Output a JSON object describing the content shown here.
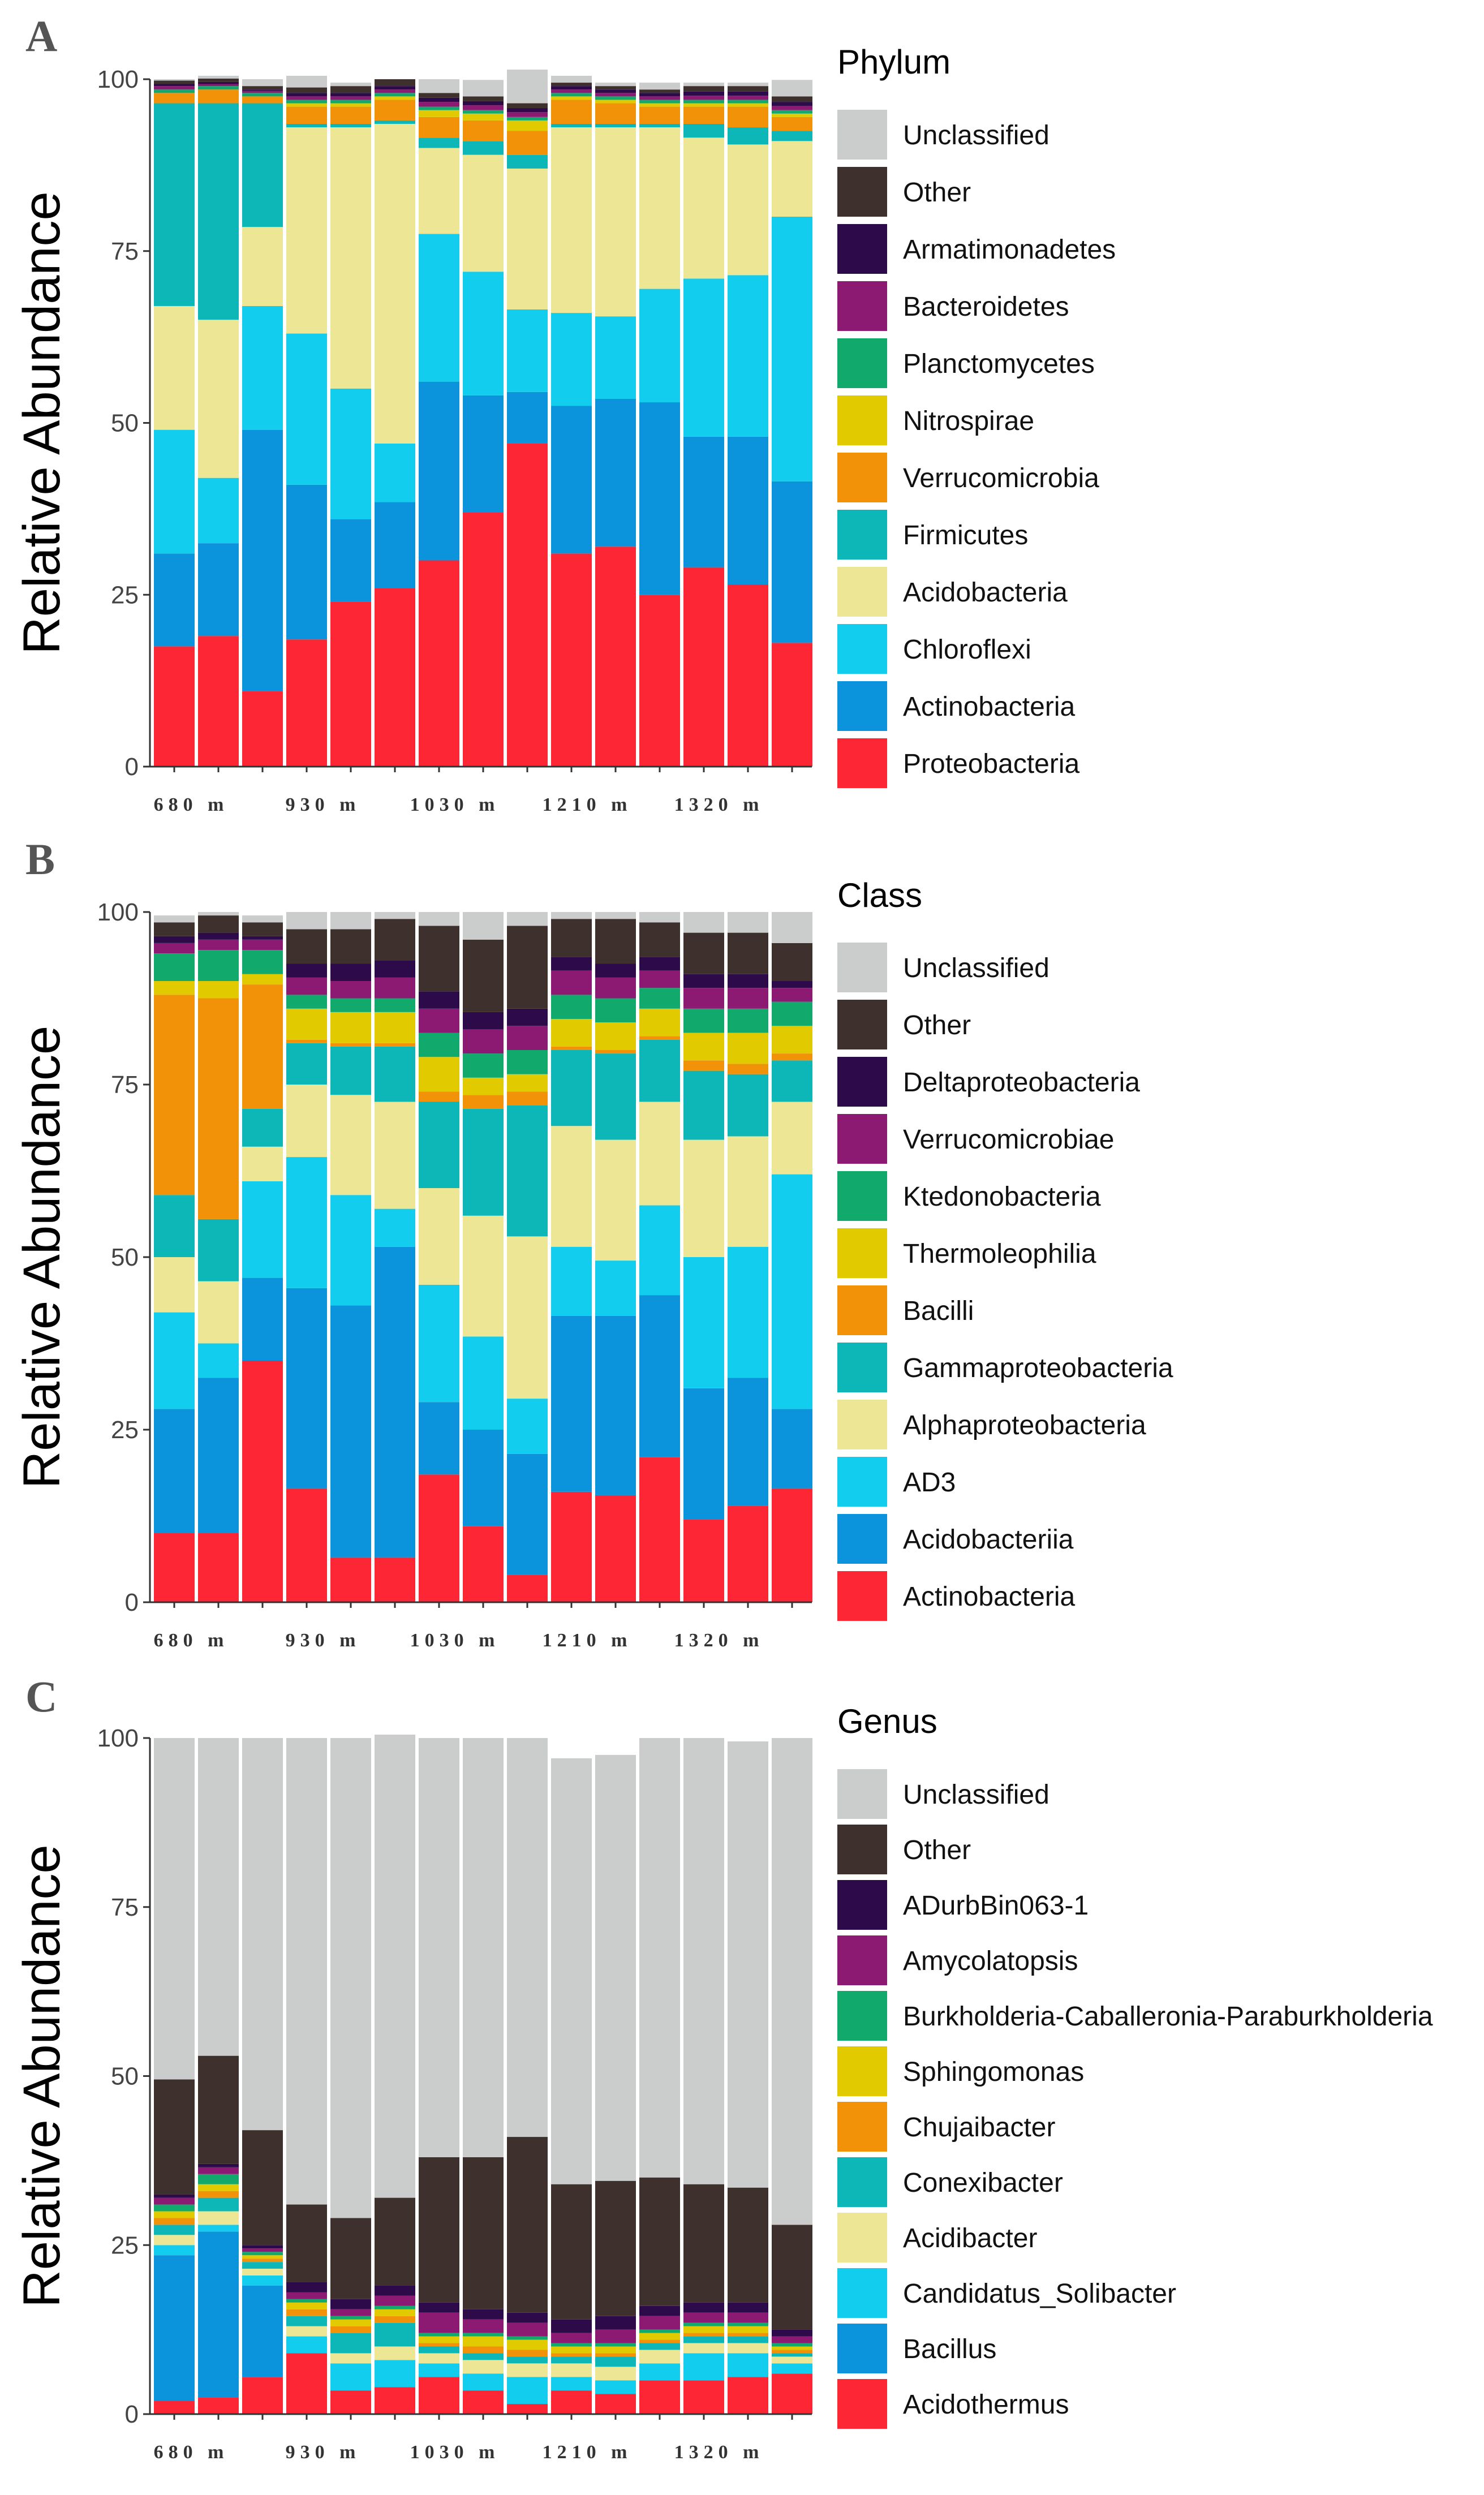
{
  "figure": {
    "panels": [
      "A",
      "B",
      "C"
    ],
    "y_axis_label": "Relative Abundance"
  },
  "chart_data": [
    {
      "panel": "A",
      "type": "bar",
      "stacked": true,
      "ylabel": "Relative Abundance",
      "ylim": [
        0,
        100
      ],
      "yticks": [
        0,
        25,
        50,
        75,
        100
      ],
      "sites": [
        "680 m",
        "930 m",
        "1030 m",
        "1210 m",
        "1320 m"
      ],
      "bars_per_site": 3,
      "legend_title": "Phylum",
      "legend": [
        "Unclassified",
        "Other",
        "Armatimonadetes",
        "Bacteroidetes",
        "Planctomycetes",
        "Nitrospirae",
        "Verrucomicrobia",
        "Firmicutes",
        "Acidobacteria",
        "Chloroflexi",
        "Actinobacteria",
        "Proteobacteria"
      ],
      "colors": [
        "#cbcccc",
        "#3d302d",
        "#2d0a4a",
        "#8d1a72",
        "#12a96d",
        "#e2ca00",
        "#f29209",
        "#0eb7b7",
        "#ede795",
        "#12cdee",
        "#0b94dc",
        "#fc2634"
      ],
      "series_bottom_to_top": [
        "Proteobacteria",
        "Actinobacteria",
        "Chloroflexi",
        "Acidobacteria",
        "Firmicutes",
        "Verrucomicrobia",
        "Nitrospirae",
        "Planctomycetes",
        "Bacteroidetes",
        "Armatimonadetes",
        "Other",
        "Unclassified"
      ],
      "series": [
        {
          "name": "Proteobacteria",
          "values": [
            17.5,
            19,
            11,
            18.5,
            24,
            26,
            30,
            37,
            47,
            31,
            32,
            25,
            29,
            26.5,
            18
          ]
        },
        {
          "name": "Actinobacteria",
          "values": [
            13.5,
            13.5,
            38,
            22.5,
            12,
            12.5,
            26,
            17,
            7.5,
            21.5,
            21.5,
            28,
            19,
            21.5,
            23.5
          ]
        },
        {
          "name": "Chloroflexi",
          "values": [
            18,
            9.5,
            18,
            22,
            19,
            8.5,
            21.5,
            18,
            12,
            13.5,
            12,
            16.5,
            23,
            23.5,
            38.5
          ]
        },
        {
          "name": "Acidobacteria",
          "values": [
            18,
            23,
            11.5,
            30,
            38,
            46.5,
            12.5,
            17,
            20.5,
            27,
            27.5,
            23.5,
            20.5,
            19,
            11
          ]
        },
        {
          "name": "Firmicutes",
          "values": [
            29.5,
            31.5,
            18,
            0.5,
            0.5,
            0.5,
            1.5,
            2,
            2,
            0.5,
            0.5,
            0.5,
            2,
            2.5,
            1.5
          ]
        },
        {
          "name": "Verrucomicrobia",
          "values": [
            1.5,
            2,
            1,
            2.5,
            2.5,
            3,
            3,
            3,
            3.5,
            3.5,
            3,
            2.5,
            2.5,
            3,
            2
          ]
        },
        {
          "name": "Nitrospirae",
          "values": [
            0,
            0,
            0,
            0.5,
            0.5,
            0.5,
            1,
            1,
            1.5,
            0.5,
            0.5,
            0.5,
            0.5,
            0.5,
            0.5
          ]
        },
        {
          "name": "Planctomycetes",
          "values": [
            0.5,
            0.5,
            0.5,
            0.5,
            0.5,
            0.5,
            0.5,
            0.5,
            0.5,
            0.5,
            0.5,
            0.5,
            0.5,
            0.5,
            0.5
          ]
        },
        {
          "name": "Bacteroidetes",
          "values": [
            0.5,
            0.3,
            0.3,
            0.5,
            0.5,
            0.5,
            0.7,
            0.7,
            0.7,
            0.5,
            0.5,
            0.5,
            0.6,
            0.6,
            0.6
          ]
        },
        {
          "name": "Armatimonadetes",
          "values": [
            0.3,
            0.3,
            0.2,
            0.5,
            0.5,
            0.5,
            0.6,
            0.6,
            0.6,
            0.5,
            0.5,
            0.5,
            0.6,
            0.6,
            0.6
          ]
        },
        {
          "name": "Other",
          "values": [
            0.5,
            0.5,
            0.5,
            0.8,
            1,
            1,
            0.7,
            0.7,
            0.7,
            0.5,
            0.5,
            0.5,
            0.8,
            0.8,
            0.8
          ]
        },
        {
          "name": "Unclassified",
          "values": [
            0.2,
            0.4,
            1,
            1.7,
            0.5,
            0,
            2,
            2.4,
            4.9,
            1,
            0.5,
            1,
            0.5,
            0.5,
            2.4
          ]
        }
      ]
    },
    {
      "panel": "B",
      "type": "bar",
      "stacked": true,
      "ylabel": "Relative Abundance",
      "ylim": [
        0,
        100
      ],
      "yticks": [
        0,
        25,
        50,
        75,
        100
      ],
      "sites": [
        "680 m",
        "930 m",
        "1030 m",
        "1210 m",
        "1320 m"
      ],
      "bars_per_site": 3,
      "legend_title": "Class",
      "legend": [
        "Unclassified",
        "Other",
        "Deltaproteobacteria",
        "Verrucomicrobiae",
        "Ktedonobacteria",
        "Thermoleophilia",
        "Bacilli",
        "Gammaproteobacteria",
        "Alphaproteobacteria",
        "AD3",
        "Acidobacteriia",
        "Actinobacteria"
      ],
      "colors": [
        "#cbcccc",
        "#3d302d",
        "#2d0a4a",
        "#8d1a72",
        "#12a96d",
        "#e2ca00",
        "#f29209",
        "#0eb7b7",
        "#ede795",
        "#12cdee",
        "#0b94dc",
        "#fc2634"
      ],
      "series_bottom_to_top": [
        "Actinobacteria",
        "Acidobacteriia",
        "AD3",
        "Alphaproteobacteria",
        "Gammaproteobacteria",
        "Bacilli",
        "Thermoleophilia",
        "Ktedonobacteria",
        "Verrucomicrobiae",
        "Deltaproteobacteria",
        "Other",
        "Unclassified"
      ],
      "series": [
        {
          "name": "Actinobacteria",
          "values": [
            10,
            10,
            35,
            16.5,
            6.5,
            6.5,
            18.5,
            11,
            4,
            16,
            15.5,
            21,
            12,
            14,
            16.5
          ]
        },
        {
          "name": "Acidobacteriia",
          "values": [
            18,
            22.5,
            12,
            29,
            36.5,
            45,
            10.5,
            14,
            17.5,
            25.5,
            26,
            23.5,
            19,
            18.5,
            11.5
          ]
        },
        {
          "name": "AD3",
          "values": [
            14,
            5,
            14,
            19,
            16,
            5.5,
            17,
            13.5,
            8,
            10,
            8,
            13,
            19,
            19,
            34
          ]
        },
        {
          "name": "Alphaproteobacteria",
          "values": [
            8,
            9,
            5,
            10.5,
            14.5,
            15.5,
            14,
            17.5,
            23.5,
            17.5,
            17.5,
            15,
            17,
            16,
            10.5
          ]
        },
        {
          "name": "Gammaproteobacteria",
          "values": [
            9,
            9,
            5.5,
            6,
            7,
            8,
            12.5,
            15.5,
            19,
            11,
            12.5,
            9,
            10,
            9,
            6
          ]
        },
        {
          "name": "Bacilli",
          "values": [
            29,
            32,
            18,
            0.5,
            0.5,
            0.5,
            1.5,
            2,
            2,
            0.5,
            0.5,
            0.5,
            1.5,
            1.5,
            1
          ]
        },
        {
          "name": "Thermoleophilia",
          "values": [
            2,
            2.5,
            1.5,
            4.5,
            4.5,
            4.5,
            5,
            2.5,
            2.5,
            4,
            4,
            4,
            4,
            4.5,
            4
          ]
        },
        {
          "name": "Ktedonobacteria",
          "values": [
            4,
            4.5,
            3.5,
            2,
            2,
            2,
            3.5,
            3.5,
            3.5,
            3.5,
            3.5,
            3,
            3.5,
            3.5,
            3.5
          ]
        },
        {
          "name": "Verrucomicrobiae",
          "values": [
            1.5,
            1.5,
            1.5,
            2.5,
            2.5,
            3,
            3.5,
            3.5,
            3.5,
            3.5,
            3,
            2.5,
            3,
            3,
            2
          ]
        },
        {
          "name": "Deltaproteobacteria",
          "values": [
            1,
            1,
            0.5,
            2,
            2.5,
            2.5,
            2.5,
            2.5,
            2.5,
            2,
            2,
            2,
            2,
            2,
            1
          ]
        },
        {
          "name": "Other",
          "values": [
            2,
            2.5,
            2,
            5,
            5,
            6,
            9.5,
            10.5,
            12,
            5.5,
            6.5,
            5,
            6,
            6,
            5.5
          ]
        },
        {
          "name": "Unclassified",
          "values": [
            1,
            0.5,
            1,
            2.5,
            2.5,
            1,
            2,
            4,
            2,
            1,
            1,
            1.5,
            3,
            3,
            4.5
          ]
        }
      ]
    },
    {
      "panel": "C",
      "type": "bar",
      "stacked": true,
      "ylabel": "Relative Abundance",
      "ylim": [
        0,
        100
      ],
      "yticks": [
        0,
        25,
        50,
        75,
        100
      ],
      "sites": [
        "680 m",
        "930 m",
        "1030 m",
        "1210 m",
        "1320 m"
      ],
      "bars_per_site": 3,
      "legend_title": "Genus",
      "legend": [
        "Unclassified",
        "Other",
        "ADurbBin063-1",
        "Amycolatopsis",
        "Burkholderia-Caballeronia-Paraburkholderia",
        "Sphingomonas",
        "Chujaibacter",
        "Conexibacter",
        "Acidibacter",
        "Candidatus_Solibacter",
        "Bacillus",
        "Acidothermus"
      ],
      "colors": [
        "#cbcccc",
        "#3d302d",
        "#2d0a4a",
        "#8d1a72",
        "#12a96d",
        "#e2ca00",
        "#f29209",
        "#0eb7b7",
        "#ede795",
        "#12cdee",
        "#0b94dc",
        "#fc2634"
      ],
      "series_bottom_to_top": [
        "Acidothermus",
        "Bacillus",
        "Candidatus_Solibacter",
        "Acidibacter",
        "Conexibacter",
        "Chujaibacter",
        "Sphingomonas",
        "Burkholderia-Caballeronia-Paraburkholderia",
        "Amycolatopsis",
        "ADurbBin063-1",
        "Other",
        "Unclassified"
      ],
      "series": [
        {
          "name": "Acidothermus",
          "values": [
            2,
            2.5,
            5.5,
            9,
            3.5,
            4,
            5.5,
            3.5,
            1.5,
            3.5,
            3,
            5,
            5,
            5.5,
            6
          ]
        },
        {
          "name": "Bacillus",
          "values": [
            21.5,
            24.5,
            13.5,
            0,
            0,
            0,
            0,
            0,
            0,
            0,
            0,
            0,
            0,
            0,
            0
          ]
        },
        {
          "name": "Candidatus_Solibacter",
          "values": [
            1.5,
            1,
            1.5,
            2.5,
            4,
            4,
            2,
            2.5,
            4,
            2,
            2,
            2.5,
            4,
            3.5,
            1.5
          ]
        },
        {
          "name": "Acidibacter",
          "values": [
            1.5,
            2,
            1,
            1.5,
            1.5,
            2,
            1.5,
            2,
            2,
            2,
            2,
            2,
            1.5,
            1.5,
            1
          ]
        },
        {
          "name": "Conexibacter",
          "values": [
            1.5,
            2,
            1,
            1.5,
            3,
            3.5,
            1,
            1,
            1,
            1,
            1.5,
            1,
            1,
            1,
            0.5
          ]
        },
        {
          "name": "Chujaibacter",
          "values": [
            1,
            1,
            0.5,
            1,
            1,
            1,
            0.5,
            1,
            1,
            0.5,
            0.5,
            0.5,
            0.5,
            0.5,
            0.5
          ]
        },
        {
          "name": "Sphingomonas",
          "values": [
            1,
            1,
            0.5,
            1,
            1,
            1,
            1,
            1.5,
            1.5,
            1,
            1,
            1,
            1,
            1,
            0.5
          ]
        },
        {
          "name": "Burkholderia-Caballeronia-Paraburkholderia",
          "values": [
            1,
            1.5,
            0.5,
            0.5,
            0.5,
            0.5,
            0.5,
            0.5,
            0.5,
            0.5,
            0.5,
            0.5,
            0.5,
            0.5,
            0.5
          ]
        },
        {
          "name": "Amycolatopsis",
          "values": [
            1,
            1,
            0.5,
            1,
            1,
            1.5,
            3,
            2,
            2,
            1.5,
            2,
            2,
            1.5,
            1.5,
            1
          ]
        },
        {
          "name": "ADurbBin063-1",
          "values": [
            0.5,
            0.5,
            0.5,
            1.5,
            1.5,
            1.5,
            1.5,
            1.5,
            1.5,
            2,
            2,
            1.5,
            1.5,
            1.5,
            1
          ]
        },
        {
          "name": "Other",
          "values": [
            17,
            16,
            17,
            11.5,
            12,
            13,
            21.5,
            22.5,
            26,
            20,
            20,
            19,
            17.5,
            17,
            15.5
          ]
        },
        {
          "name": "Unclassified",
          "values": [
            50.5,
            47,
            58,
            69,
            71,
            68.5,
            62,
            62,
            59,
            63,
            63,
            65,
            66,
            66,
            72
          ]
        }
      ]
    }
  ]
}
